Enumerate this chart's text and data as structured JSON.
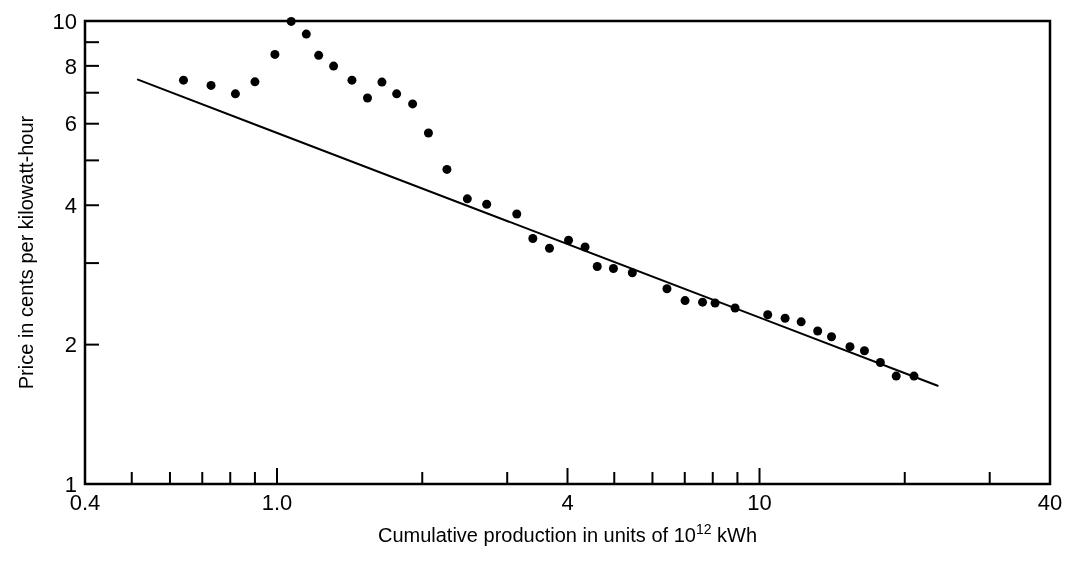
{
  "chart_data": {
    "type": "scatter",
    "xlabel": "Cumulative production in units of 10$^{12}$ kWh",
    "ylabel": "Price in cents per kilowatt-hour",
    "log": "xy",
    "grid": false,
    "marker": "circle",
    "xlim": [
      0.4,
      40
    ],
    "ylim": [
      1,
      10
    ],
    "xticks": [
      {
        "value": 0.4,
        "label": "0.4"
      },
      {
        "value": 0.5,
        "label": null
      },
      {
        "value": 0.6,
        "label": null
      },
      {
        "value": 0.7,
        "label": null
      },
      {
        "value": 0.8,
        "label": null
      },
      {
        "value": 0.9,
        "label": null
      },
      {
        "value": 1,
        "label": "1.0"
      },
      {
        "value": 2,
        "label": null
      },
      {
        "value": 3,
        "label": null
      },
      4,
      {
        "value": 5,
        "label": null
      },
      {
        "value": 6,
        "label": null
      },
      {
        "value": 7,
        "label": null
      },
      {
        "value": 8,
        "label": null
      },
      {
        "value": 9,
        "label": null
      },
      10,
      {
        "value": 20,
        "label": null
      },
      {
        "value": 30,
        "label": null
      },
      40
    ],
    "yticks": [
      1,
      2,
      {
        "value": 3,
        "label": null
      },
      4,
      {
        "value": 5,
        "label": null
      },
      6,
      {
        "value": 7,
        "label": null
      },
      8,
      {
        "value": 9,
        "label": null
      },
      10
    ],
    "series": [
      {
        "color": "#000000",
        "x": [
          0.64,
          0.73,
          0.82,
          0.9,
          0.99,
          1.07,
          1.15,
          1.22,
          1.31,
          1.43,
          1.54,
          1.65,
          1.77,
          1.91,
          2.06,
          2.25,
          2.48,
          2.72,
          3.14,
          3.39,
          3.67,
          4.02,
          4.35,
          4.61,
          4.98,
          5.45,
          6.43,
          7.01,
          7.62,
          8.09,
          8.9,
          10.4,
          11.3,
          12.2,
          13.2,
          14.1,
          15.4,
          16.5,
          17.8,
          19.2,
          20.9
        ],
        "values": [
          7.45,
          7.26,
          6.96,
          7.39,
          8.47,
          9.98,
          9.37,
          8.43,
          7.99,
          7.45,
          6.82,
          7.38,
          6.96,
          6.62,
          5.73,
          4.78,
          4.13,
          4.02,
          3.83,
          3.39,
          3.23,
          3.36,
          3.25,
          2.95,
          2.92,
          2.86,
          2.64,
          2.49,
          2.47,
          2.46,
          2.4,
          2.32,
          2.28,
          2.24,
          2.14,
          2.08,
          1.98,
          1.94,
          1.83,
          1.71,
          1.71
        ]
      },
      {
        "type": "line",
        "color": "#000000",
        "marker": "none",
        "x": [
          0.515,
          23.4
        ],
        "values": [
          7.47,
          1.63
        ]
      }
    ]
  }
}
